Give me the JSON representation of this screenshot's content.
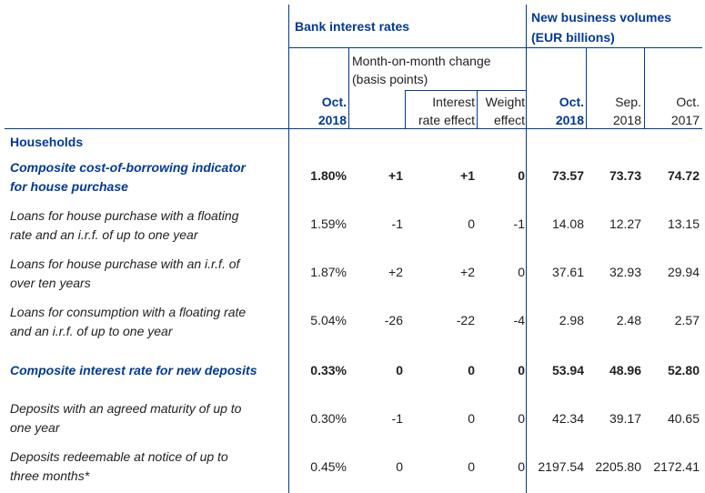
{
  "header": {
    "bank_rates": "Bank interest rates",
    "volumes_line1": "New business volumes",
    "volumes_line2": "(EUR billions)",
    "mom_line1": "Month-on-month change",
    "mom_line2": "(basis points)",
    "oct2018_a": "Oct.",
    "oct2018_b": "2018",
    "interest_line1": "Interest",
    "interest_line2": "rate effect",
    "weight_line1": "Weight",
    "weight_line2": "effect",
    "vol_oct2018_a": "Oct.",
    "vol_oct2018_b": "2018",
    "vol_sep2018_a": "Sep.",
    "vol_sep2018_b": "2018",
    "vol_oct2017_a": "Oct.",
    "vol_oct2017_b": "2017"
  },
  "section": "Households",
  "rows": [
    {
      "label1": "Composite cost-of-borrowing indicator",
      "label2": "for house purchase",
      "rate": "1.80%",
      "mom": "+1",
      "ire": "+1",
      "we": "0",
      "v1": "73.57",
      "v2": "73.73",
      "v3": "74.72"
    },
    {
      "label1": "Loans for house purchase with a floating",
      "label2": "rate and an i.r.f. of up to one year",
      "rate": "1.59%",
      "mom": "-1",
      "ire": "0",
      "we": "-1",
      "v1": "14.08",
      "v2": "12.27",
      "v3": "13.15"
    },
    {
      "label1": "Loans for house purchase with an i.r.f. of",
      "label2": "over ten years",
      "rate": "1.87%",
      "mom": "+2",
      "ire": "+2",
      "we": "0",
      "v1": "37.61",
      "v2": "32.93",
      "v3": "29.94"
    },
    {
      "label1": "Loans for consumption with a floating rate",
      "label2": "and an i.r.f. of up to one year",
      "rate": "5.04%",
      "mom": "-26",
      "ire": "-22",
      "we": "-4",
      "v1": "2.98",
      "v2": "2.48",
      "v3": "2.57"
    },
    {
      "label1": "Composite interest rate for new deposits",
      "label2": "",
      "rate": "0.33%",
      "mom": "0",
      "ire": "0",
      "we": "0",
      "v1": "53.94",
      "v2": "48.96",
      "v3": "52.80"
    },
    {
      "label1": "Deposits with an agreed maturity of up to",
      "label2": "one year",
      "rate": "0.30%",
      "mom": "-1",
      "ire": "0",
      "we": "0",
      "v1": "42.34",
      "v2": "39.17",
      "v3": "40.65"
    },
    {
      "label1": "Deposits redeemable at notice of up to",
      "label2": "three months*",
      "rate": "0.45%",
      "mom": "0",
      "ire": "0",
      "we": "0",
      "v1": "2197.54",
      "v2": "2205.80",
      "v3": "2172.41"
    }
  ]
}
